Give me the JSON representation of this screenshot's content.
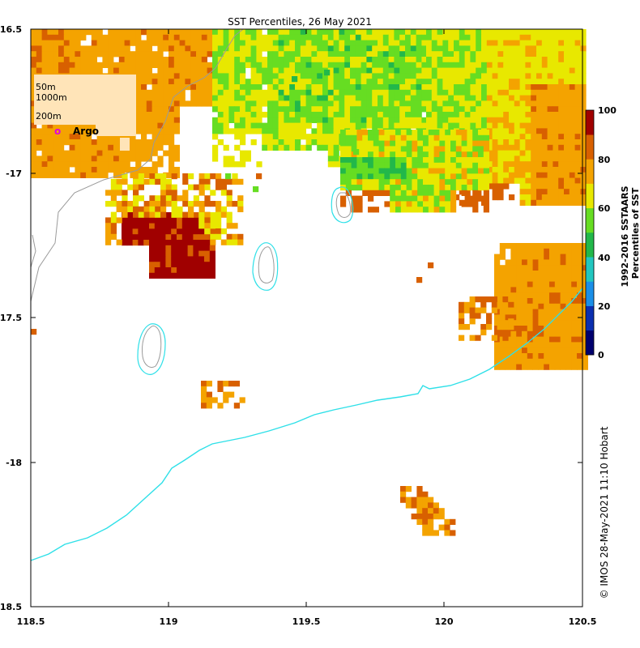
{
  "title": "SST Percentiles, 26 May 2021",
  "x_ticks": [
    "118.5",
    "119",
    "119.5",
    "120",
    "120.5"
  ],
  "y_ticks": [
    "-16.5",
    "-17",
    "-17.5",
    "-18",
    "-18.5"
  ],
  "legend": {
    "contours": [
      "50m",
      "1000m",
      "200m"
    ],
    "argo_marker": "o",
    "argo_label": "Argo",
    "argo_color": "#e000e0"
  },
  "colorbar": {
    "ticks": [
      "100",
      "80",
      "60",
      "40",
      "20",
      "0"
    ],
    "label_line1": "1992-2016 SSTAARS",
    "label_line2": "Percentiles of SST",
    "colors": [
      "#00006e",
      "#0b2fb0",
      "#1a8fe8",
      "#22c7c0",
      "#22b84a",
      "#66dd22",
      "#e8e800",
      "#f4a300",
      "#d86000",
      "#a00000"
    ]
  },
  "credit": "© IMOS 28-May-2021 11:10 Hobart",
  "map_colors": {
    "land_fill": "#ffe4b8",
    "shelf_contour": "#2ee0e8",
    "coast_line": "#9a9a9a"
  }
}
